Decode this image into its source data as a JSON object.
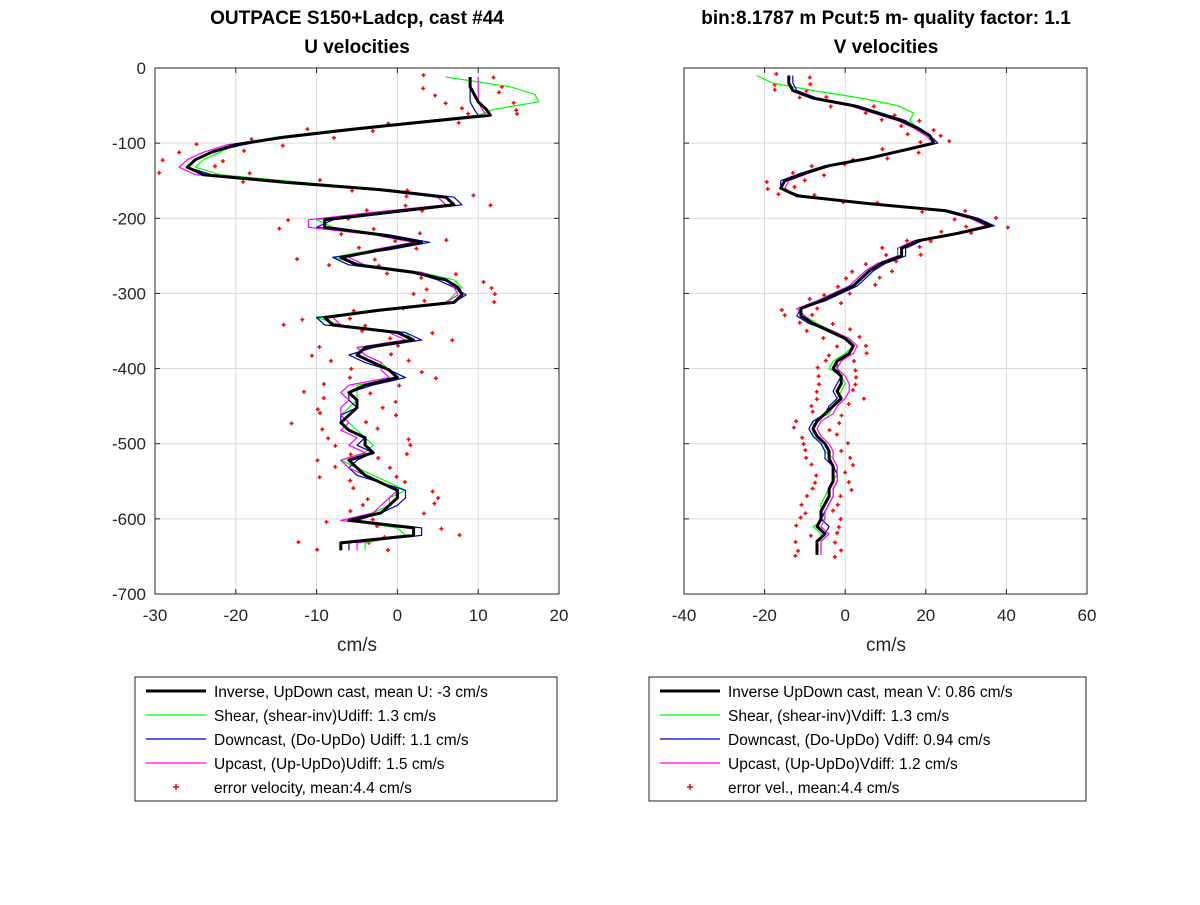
{
  "colors": {
    "inverse": "#000000",
    "shear": "#00ff00",
    "downcast": "#0000cc",
    "upcast": "#ff00ff",
    "error": "#ff0000",
    "grid": "#d9d9d9"
  },
  "chart_data": [
    {
      "type": "line",
      "title": "OUTPACE S150+Ladcp, cast #44",
      "subtitle": "U velocities",
      "xlabel": "cm/s",
      "ylabel": "",
      "xlim": [
        -30,
        20
      ],
      "ylim": [
        -700,
        0
      ],
      "xticks": [
        -30,
        -20,
        -10,
        0,
        10,
        20
      ],
      "yticks": [
        0,
        -100,
        -200,
        -300,
        -400,
        -500,
        -600,
        -700
      ],
      "grid": true,
      "legend_position": "below",
      "depth": [
        -12,
        -25,
        -35,
        -45,
        -55,
        -63,
        -72,
        -82,
        -92,
        -102,
        -112,
        -122,
        -132,
        -142,
        -152,
        -162,
        -172,
        -182,
        -192,
        -202,
        -212,
        -222,
        -232,
        -242,
        -252,
        -262,
        -272,
        -282,
        -292,
        -302,
        -312,
        -322,
        -332,
        -342,
        -352,
        -362,
        -372,
        -382,
        -392,
        -402,
        -412,
        -422,
        -432,
        -442,
        -452,
        -462,
        -472,
        -482,
        -492,
        -502,
        -512,
        -522,
        -532,
        -542,
        -552,
        -562,
        -572,
        -582,
        -592,
        -602,
        -612,
        -622,
        -632,
        -642
      ],
      "series": [
        {
          "name": "Inverse, UpDown cast, mean U:  -3 cm/s",
          "key": "inverse",
          "style": "line",
          "values": [
            9,
            9,
            9.5,
            10,
            11,
            11.5,
            3,
            -6,
            -14,
            -20,
            -23,
            -25,
            -26,
            -24,
            -14,
            -2,
            6,
            7,
            -1,
            -9,
            -9,
            -2,
            3,
            -2,
            -7,
            -5,
            2,
            6,
            7.5,
            8,
            7,
            -2,
            -9,
            -8,
            0,
            2,
            -4,
            -5,
            -3,
            -1,
            0,
            -4,
            -6,
            -5,
            -5,
            -6,
            -7,
            -6,
            -4,
            -4,
            -3,
            -6,
            -5,
            -4,
            -2,
            0,
            0,
            -1,
            -2,
            -6,
            2,
            2,
            -7,
            -7
          ]
        },
        {
          "name": "Shear, (shear-inv)Udiff:  1.3 cm/s",
          "key": "shear",
          "style": "line",
          "values": [
            6,
            14,
            17,
            17.5,
            12,
            10,
            2,
            -7,
            -15,
            -20,
            -22,
            -24,
            -25,
            -22,
            -12,
            -1,
            5,
            6,
            -2,
            -10,
            -8,
            -1,
            2,
            -3,
            -8,
            -4,
            3,
            7,
            8,
            7,
            6,
            -3,
            -10,
            -7,
            1,
            2,
            -5,
            -4,
            -2,
            -1,
            1,
            -5,
            -5,
            -5,
            -6,
            -7,
            -6,
            -5,
            -4,
            -3,
            -4,
            -7,
            -5,
            -3,
            -1,
            1,
            -1,
            -1,
            -3,
            -6,
            0,
            1,
            -4,
            -4
          ]
        },
        {
          "name": "Downcast, (Do-UpDo) Udiff:  1.1 cm/s",
          "key": "downcast",
          "style": "line",
          "values": [
            9,
            9,
            9,
            9,
            9.5,
            10,
            2,
            -6,
            -14,
            -19,
            -23,
            -25,
            -26,
            -23,
            -13,
            -1,
            7,
            8,
            0,
            -8,
            -10,
            -1,
            4,
            -1,
            -8,
            -6,
            2,
            5,
            7,
            8.5,
            7,
            -1,
            -10,
            -9,
            1,
            3,
            -3,
            -6,
            -4,
            -1,
            1,
            -3,
            -6,
            -6,
            -5,
            -7,
            -7,
            -6,
            -4,
            -5,
            -3,
            -5,
            -6,
            -5,
            -2,
            1,
            1,
            0,
            -2,
            -5,
            3,
            3,
            -6,
            -6
          ]
        },
        {
          "name": "Upcast, (Up-UpDo)Udiff:  1.5 cm/s",
          "key": "upcast",
          "style": "line",
          "values": [
            10,
            10,
            10,
            10,
            10.5,
            11,
            4,
            -5,
            -13,
            -21,
            -24,
            -26,
            -27,
            -25,
            -15,
            -3,
            5,
            6,
            -3,
            -11,
            -11,
            -3,
            2,
            -3,
            -6,
            -4,
            3,
            6,
            7,
            7.5,
            6,
            -3,
            -8,
            -7,
            -1,
            1,
            -5,
            -4,
            -2,
            -2,
            -1,
            -6,
            -7,
            -6,
            -7,
            -7,
            -6,
            -7,
            -5,
            -6,
            -4,
            -7,
            -6,
            -4,
            -2,
            0,
            -1,
            -2,
            -3,
            -7,
            2,
            2,
            -5,
            -5
          ]
        },
        {
          "name": "error velocity, mean:4.4 cm/s",
          "key": "error",
          "style": "points",
          "width": 4.4
        }
      ]
    },
    {
      "type": "line",
      "title": "bin:8.1787 m  Pcut:5 m- quality factor:  1.1",
      "subtitle": "V velocities",
      "xlabel": "cm/s",
      "ylabel": "",
      "xlim": [
        -40,
        60
      ],
      "ylim": [
        -700,
        0
      ],
      "xticks": [
        -40,
        -20,
        0,
        20,
        40,
        60
      ],
      "yticks": [
        0,
        -100,
        -200,
        -300,
        -400,
        -500,
        -600,
        -700
      ],
      "grid": true,
      "legend_position": "below",
      "depth": [
        -10,
        -20,
        -30,
        -40,
        -50,
        -60,
        -70,
        -80,
        -90,
        -100,
        -110,
        -120,
        -130,
        -140,
        -150,
        -160,
        -170,
        -180,
        -190,
        -200,
        -210,
        -220,
        -230,
        -240,
        -250,
        -260,
        -270,
        -280,
        -290,
        -300,
        -310,
        -320,
        -330,
        -340,
        -350,
        -360,
        -370,
        -380,
        -390,
        -400,
        -410,
        -420,
        -430,
        -440,
        -450,
        -460,
        -470,
        -480,
        -490,
        -500,
        -510,
        -520,
        -530,
        -540,
        -550,
        -560,
        -570,
        -580,
        -590,
        -600,
        -610,
        -620,
        -630,
        -640,
        -648
      ],
      "series": [
        {
          "name": "Inverse UpDown cast, mean V:  0.86 cm/s",
          "key": "inverse",
          "style": "line",
          "values": [
            -14,
            -14,
            -13,
            -8,
            2,
            8,
            14,
            18,
            21,
            22,
            14,
            6,
            -4,
            -10,
            -15,
            -16,
            -12,
            5,
            25,
            32,
            36,
            28,
            18,
            14,
            14,
            9,
            6,
            4,
            2,
            -2,
            -6,
            -11,
            -11,
            -8,
            -4,
            0,
            2,
            1,
            -2,
            -3,
            -1,
            -1,
            -2,
            -1,
            -3,
            -5,
            -7,
            -8,
            -7,
            -5,
            -4,
            -4,
            -3,
            -3,
            -3,
            -4,
            -4,
            -5,
            -6,
            -6,
            -7,
            -5,
            -7,
            -7,
            -7
          ]
        },
        {
          "name": "Shear, (shear-inv)Vdiff:  1.3 cm/s",
          "key": "shear",
          "style": "line",
          "values": [
            -22,
            -18,
            -8,
            4,
            13,
            17,
            16,
            18,
            21,
            22,
            14,
            6,
            -4,
            -10,
            -15,
            -16,
            -12,
            5,
            24,
            31,
            35,
            27,
            17,
            13,
            13,
            8,
            5,
            3,
            1,
            -3,
            -7,
            -12,
            -10,
            -7,
            -3,
            1,
            2,
            0,
            -3,
            -4,
            -1,
            0,
            -1,
            -2,
            -3,
            -4,
            -8,
            -8,
            -8,
            -6,
            -5,
            -3,
            -2,
            -2,
            -3,
            -4,
            -5,
            -6,
            -6,
            -5,
            -8,
            -6,
            -6,
            -6,
            -6
          ]
        },
        {
          "name": "Downcast, (Do-UpDo) Vdiff:  0.94 cm/s",
          "key": "downcast",
          "style": "line",
          "values": [
            -13,
            -13,
            -12,
            -7,
            3,
            9,
            15,
            18,
            21,
            23,
            15,
            5,
            -5,
            -11,
            -16,
            -16,
            -11,
            6,
            26,
            33,
            37,
            29,
            19,
            15,
            15,
            10,
            7,
            5,
            3,
            -1,
            -5,
            -11,
            -12,
            -9,
            -4,
            0,
            2,
            1,
            -2,
            -2,
            -1,
            -2,
            -3,
            -2,
            -4,
            -5,
            -8,
            -9,
            -8,
            -6,
            -5,
            -5,
            -3,
            -2,
            -2,
            -3,
            -3,
            -4,
            -5,
            -6,
            -4,
            -5,
            -7,
            -7,
            -7
          ]
        },
        {
          "name": "Upcast, (Up-UpDo)Vdiff:  1.2 cm/s",
          "key": "upcast",
          "style": "line",
          "values": [
            -14,
            -14,
            -13,
            -8,
            1,
            7,
            13,
            17,
            20,
            22,
            13,
            5,
            -4,
            -9,
            -14,
            -15,
            -12,
            4,
            24,
            31,
            35,
            27,
            17,
            13,
            13,
            8,
            5,
            3,
            1,
            -3,
            -7,
            -12,
            -10,
            -8,
            -3,
            1,
            3,
            2,
            -1,
            -2,
            0,
            1,
            1,
            0,
            -2,
            -3,
            -6,
            -7,
            -6,
            -4,
            -3,
            -3,
            -2,
            -2,
            -2,
            -3,
            -3,
            -4,
            -5,
            -5,
            -6,
            -4,
            -6,
            -6,
            -6
          ]
        },
        {
          "name": "error vel., mean:4.4 cm/s",
          "key": "error",
          "style": "points",
          "width": 4.4
        }
      ]
    }
  ]
}
